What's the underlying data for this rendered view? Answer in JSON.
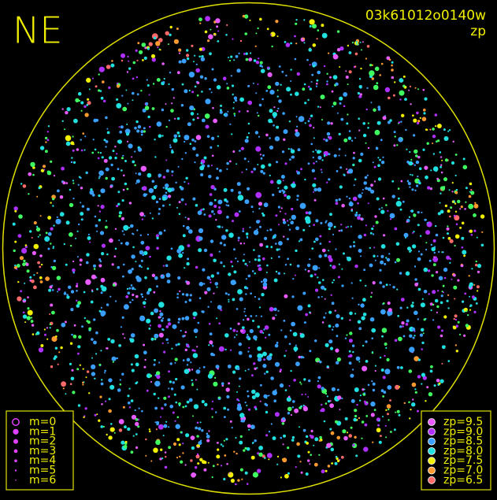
{
  "header": {
    "direction": "NE",
    "frame_id": "03k61012o0140w",
    "mode": "zp"
  },
  "legend_magnitude": {
    "items": [
      "m=0",
      "m=1",
      "m=2",
      "m=3",
      "m=4",
      "m=5",
      "m=6"
    ],
    "color": "#e040ff"
  },
  "legend_zp": {
    "items": [
      {
        "label": "zp=9.5",
        "color": "#e85cff"
      },
      {
        "label": "zp=9.0",
        "color": "#b030ff"
      },
      {
        "label": "zp=8.5",
        "color": "#3aa0ff"
      },
      {
        "label": "zp=8.0",
        "color": "#20e0e0"
      },
      {
        "label": "zp=7.5",
        "color": "#f0f000"
      },
      {
        "label": "zp=7.0",
        "color": "#ff9a30"
      },
      {
        "label": "zp=6.5",
        "color": "#ff6a6a"
      }
    ]
  }
}
